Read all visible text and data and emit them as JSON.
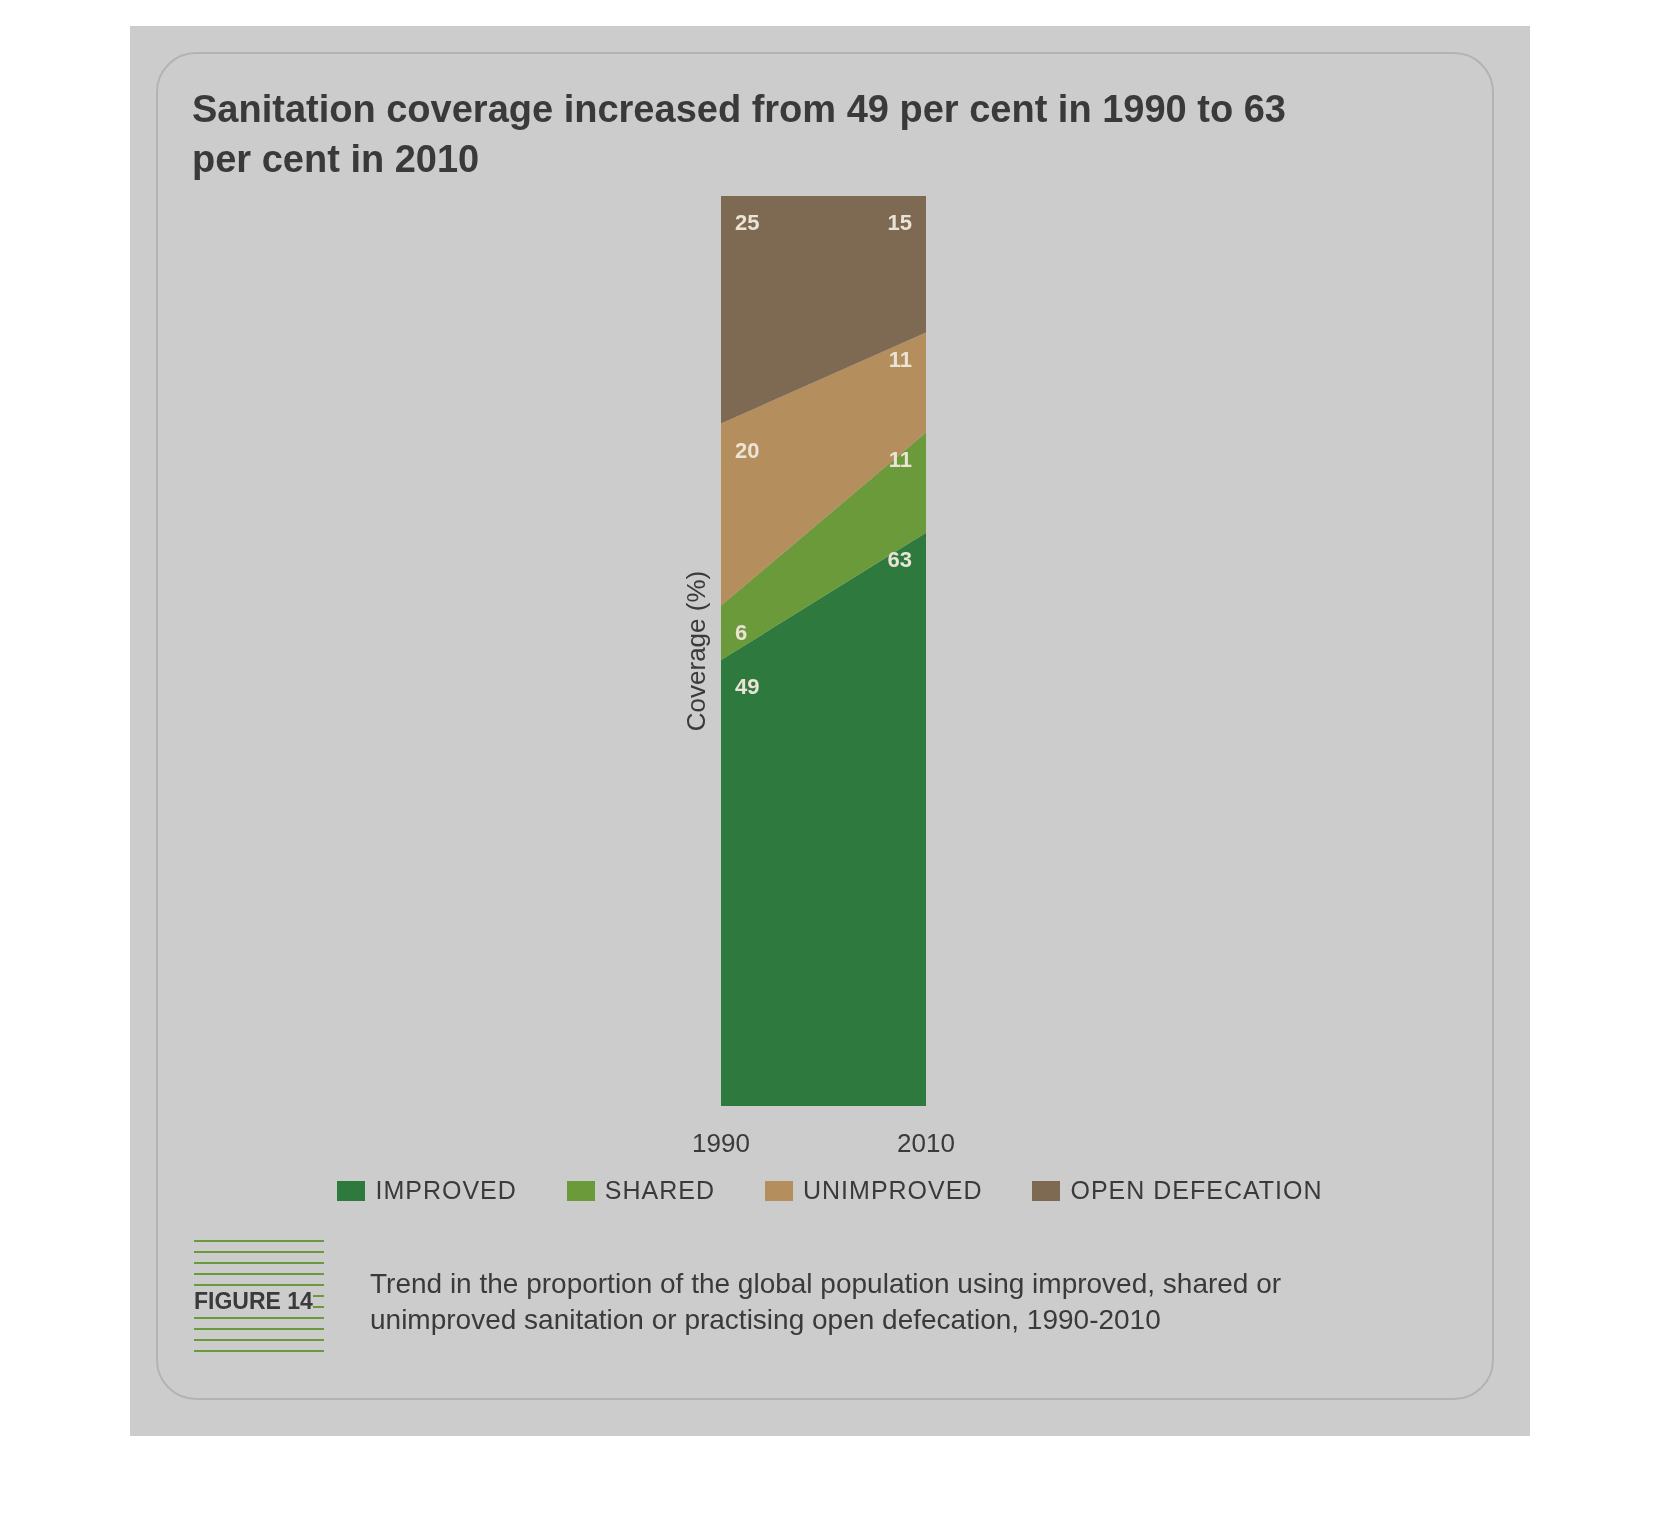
{
  "chart_data": {
    "type": "area",
    "stacked": true,
    "title": "Sanitation coverage increased from 49 per cent in 1990 to 63 per cent in 2010",
    "ylabel": "Coverage (%)",
    "categories": [
      "1990",
      "2010"
    ],
    "series": [
      {
        "name": "IMPROVED",
        "color": "#2e7a3e",
        "values": [
          49,
          63
        ]
      },
      {
        "name": "SHARED",
        "color": "#6a9a3a",
        "values": [
          6,
          11
        ]
      },
      {
        "name": "UNIMPROVED",
        "color": "#b58e5e",
        "values": [
          20,
          11
        ]
      },
      {
        "name": "OPEN DEFECATION",
        "color": "#7e6a52",
        "values": [
          25,
          15
        ]
      }
    ],
    "data_labels": true,
    "legend": "bottom",
    "annotations": [
      "FIGURE 14",
      "Trend in the proportion of the global population using improved, shared or unimproved sanitation or practising open defecation, 1990-2010"
    ]
  }
}
